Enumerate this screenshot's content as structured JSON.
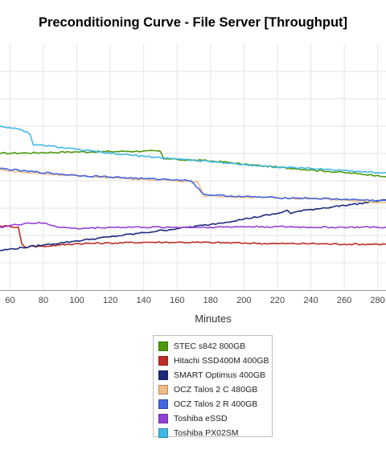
{
  "chart_data": {
    "type": "line",
    "title": "Preconditioning Curve - File Server [Throughput]",
    "xlabel": "Minutes",
    "ylabel": "",
    "x_ticks": [
      60,
      80,
      100,
      120,
      140,
      160,
      180,
      200,
      220,
      240,
      260,
      280
    ],
    "xlim": [
      54,
      285
    ],
    "ylim": [
      0,
      9
    ],
    "grid": true,
    "legend_position": "bottom",
    "series": [
      {
        "name": "STEC s842 800GB",
        "color": "#4c9a0c",
        "x": [
          54,
          60,
          70,
          80,
          90,
          100,
          110,
          120,
          130,
          140,
          150,
          152,
          155,
          160,
          170,
          175,
          180,
          190,
          200,
          210,
          220,
          230,
          240,
          250,
          260,
          270,
          280,
          285
        ],
        "y": [
          5.0,
          5.01,
          5.02,
          5.03,
          5.05,
          5.06,
          5.06,
          5.07,
          5.08,
          5.09,
          5.08,
          4.8,
          4.8,
          4.78,
          4.75,
          4.75,
          4.72,
          4.68,
          4.6,
          4.55,
          4.5,
          4.45,
          4.4,
          4.35,
          4.3,
          4.25,
          4.2,
          4.15
        ]
      },
      {
        "name": "Hitachi SSD400M 400GB",
        "color": "#bd2d27",
        "x": [
          54,
          60,
          65,
          67,
          70,
          72,
          80,
          90,
          100,
          120,
          140,
          160,
          180,
          200,
          220,
          240,
          260,
          280,
          285
        ],
        "y": [
          2.35,
          2.33,
          2.3,
          1.7,
          1.55,
          1.6,
          1.6,
          1.65,
          1.7,
          1.72,
          1.75,
          1.75,
          1.74,
          1.72,
          1.7,
          1.7,
          1.68,
          1.68,
          1.68
        ]
      },
      {
        "name": "SMART Optimus 400GB",
        "color": "#1c2a7a",
        "x": [
          54,
          80,
          100,
          120,
          140,
          160,
          180,
          200,
          220,
          226,
          228,
          230,
          240,
          260,
          280,
          285
        ],
        "y": [
          1.45,
          1.65,
          1.8,
          1.95,
          2.1,
          2.25,
          2.4,
          2.6,
          2.8,
          2.92,
          2.8,
          2.85,
          2.95,
          3.1,
          3.25,
          3.3
        ]
      },
      {
        "name": "OCZ Talos 2 C 480GB",
        "color": "#f2bb84",
        "x": [
          54,
          70,
          100,
          120,
          140,
          160,
          172,
          176,
          180,
          200,
          220,
          240,
          260,
          280,
          285
        ],
        "y": [
          4.4,
          4.3,
          4.18,
          4.12,
          4.05,
          4.0,
          3.98,
          3.45,
          3.45,
          3.4,
          3.38,
          3.35,
          3.3,
          3.2,
          3.2
        ]
      },
      {
        "name": "OCZ Talos 2 R 400GB",
        "color": "#4466e0",
        "x": [
          54,
          70,
          100,
          120,
          140,
          160,
          168,
          170,
          176,
          180,
          200,
          220,
          240,
          260,
          280,
          285
        ],
        "y": [
          4.45,
          4.35,
          4.2,
          4.14,
          4.08,
          4.04,
          4.0,
          3.9,
          3.5,
          3.48,
          3.42,
          3.38,
          3.36,
          3.32,
          3.28,
          3.28
        ]
      },
      {
        "name": "Toshiba eSSD",
        "color": "#9440d8",
        "x": [
          54,
          70,
          80,
          90,
          100,
          120,
          140,
          160,
          180,
          200,
          220,
          240,
          260,
          280,
          285
        ],
        "y": [
          2.3,
          2.45,
          2.45,
          2.3,
          2.25,
          2.3,
          2.3,
          2.3,
          2.3,
          2.32,
          2.32,
          2.3,
          2.3,
          2.3,
          2.3
        ]
      },
      {
        "name": "Toshiba PX02SM",
        "color": "#40b8ea",
        "x": [
          54,
          60,
          70,
          72,
          74,
          80,
          100,
          120,
          140,
          160,
          180,
          200,
          220,
          240,
          260,
          280,
          285
        ],
        "y": [
          6.0,
          5.95,
          5.8,
          5.7,
          5.3,
          5.3,
          5.15,
          5.0,
          4.9,
          4.8,
          4.7,
          4.6,
          4.5,
          4.45,
          4.38,
          4.3,
          4.3
        ]
      }
    ]
  }
}
